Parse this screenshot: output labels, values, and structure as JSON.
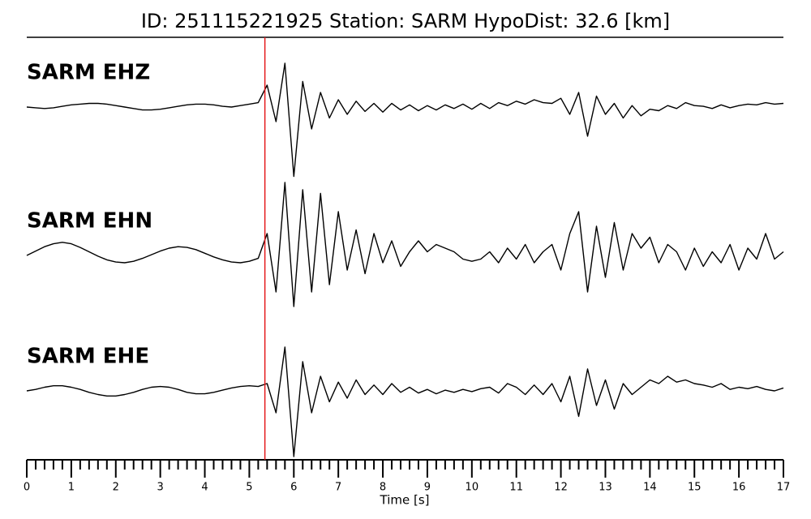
{
  "chart_data": {
    "type": "line",
    "title": "ID: 251115221925   Station: SARM   HypoDist:    32.6 [km]",
    "xlabel": "Time [s]",
    "xlim": [
      0,
      17
    ],
    "xticks": [
      0,
      1,
      2,
      3,
      4,
      5,
      6,
      7,
      8,
      9,
      10,
      11,
      12,
      13,
      14,
      15,
      16,
      17
    ],
    "xminorticks": [
      0.2,
      0.4,
      0.6,
      0.8,
      1.2,
      1.4,
      1.6,
      1.8,
      2.2,
      2.4,
      2.6,
      2.8,
      3.2,
      3.4,
      3.6,
      3.8,
      4.2,
      4.4,
      4.6,
      4.8,
      5.2,
      5.4,
      5.6,
      5.8,
      6.2,
      6.4,
      6.6,
      6.8,
      7.2,
      7.4,
      7.6,
      7.8,
      8.2,
      8.4,
      8.6,
      8.8,
      9.2,
      9.4,
      9.6,
      9.8,
      10.2,
      10.4,
      10.6,
      10.8,
      11.2,
      11.4,
      11.6,
      11.8,
      12.2,
      12.4,
      12.6,
      12.8,
      13.2,
      13.4,
      13.6,
      13.8,
      14.2,
      14.4,
      14.6,
      14.8,
      15.2,
      15.4,
      15.6,
      15.8,
      16.2,
      16.4,
      16.6,
      16.8
    ],
    "ylim": [
      -1,
      1
    ],
    "label_color": "#4c9a0a",
    "markers": [
      {
        "x": 5.35,
        "color": "#e41a1c"
      }
    ],
    "x": [
      0,
      0.2,
      0.4,
      0.6,
      0.8,
      1,
      1.2,
      1.4,
      1.6,
      1.8,
      2,
      2.2,
      2.4,
      2.6,
      2.8,
      3,
      3.2,
      3.4,
      3.6,
      3.8,
      4,
      4.2,
      4.4,
      4.6,
      4.8,
      5,
      5.2,
      5.4,
      5.6,
      5.8,
      6,
      6.2,
      6.4,
      6.6,
      6.8,
      7,
      7.2,
      7.4,
      7.6,
      7.8,
      8,
      8.2,
      8.4,
      8.6,
      8.8,
      9,
      9.2,
      9.4,
      9.6,
      9.8,
      10,
      10.2,
      10.4,
      10.6,
      10.8,
      11,
      11.2,
      11.4,
      11.6,
      11.8,
      12,
      12.2,
      12.4,
      12.6,
      12.8,
      13,
      13.2,
      13.4,
      13.6,
      13.8,
      14,
      14.2,
      14.4,
      14.6,
      14.8,
      15,
      15.2,
      15.4,
      15.6,
      15.8,
      16,
      16.2,
      16.4,
      16.6,
      16.8,
      17
    ],
    "series": [
      {
        "name": "SARM EHZ",
        "color": "#000000",
        "values": [
          0,
          -0.01,
          -0.02,
          -0.01,
          0.01,
          0.03,
          0.04,
          0.05,
          0.05,
          0.04,
          0.02,
          0,
          -0.02,
          -0.04,
          -0.04,
          -0.03,
          -0.01,
          0.01,
          0.03,
          0.04,
          0.04,
          0.03,
          0.01,
          0,
          0.02,
          0.04,
          0.06,
          0.3,
          -0.2,
          0.6,
          -0.95,
          0.35,
          -0.3,
          0.2,
          -0.15,
          0.1,
          -0.1,
          0.08,
          -0.06,
          0.05,
          -0.07,
          0.05,
          -0.04,
          0.03,
          -0.05,
          0.02,
          -0.04,
          0.03,
          -0.02,
          0.04,
          -0.03,
          0.05,
          -0.02,
          0.06,
          0.02,
          0.08,
          0.04,
          0.1,
          0.06,
          0.05,
          0.12,
          -0.1,
          0.2,
          -0.4,
          0.15,
          -0.1,
          0.05,
          -0.15,
          0.02,
          -0.12,
          -0.03,
          -0.05,
          0.02,
          -0.02,
          0.06,
          0.02,
          0.01,
          -0.02,
          0.03,
          -0.01,
          0.02,
          0.04,
          0.03,
          0.06,
          0.04,
          0.05
        ]
      },
      {
        "name": "SARM EHN",
        "color": "#000000",
        "values": [
          0,
          0.06,
          0.12,
          0.16,
          0.18,
          0.16,
          0.11,
          0.05,
          -0.01,
          -0.06,
          -0.09,
          -0.1,
          -0.08,
          -0.04,
          0.01,
          0.06,
          0.1,
          0.12,
          0.11,
          0.08,
          0.03,
          -0.02,
          -0.06,
          -0.09,
          -0.1,
          -0.08,
          -0.04,
          0.3,
          -0.5,
          1.0,
          -0.7,
          0.9,
          -0.5,
          0.85,
          -0.4,
          0.6,
          -0.2,
          0.35,
          -0.25,
          0.3,
          -0.1,
          0.2,
          -0.15,
          0.05,
          0.2,
          0.05,
          0.15,
          0.1,
          0.05,
          -0.05,
          -0.08,
          -0.05,
          0.05,
          -0.1,
          0.1,
          -0.05,
          0.15,
          -0.1,
          0.05,
          0.15,
          -0.2,
          0.3,
          0.6,
          -0.5,
          0.4,
          -0.3,
          0.45,
          -0.2,
          0.3,
          0.1,
          0.25,
          -0.1,
          0.15,
          0.05,
          -0.2,
          0.1,
          -0.15,
          0.05,
          -0.1,
          0.15,
          -0.2,
          0.1,
          -0.05,
          0.3,
          -0.05,
          0.05
        ]
      },
      {
        "name": "SARM EHE",
        "color": "#000000",
        "values": [
          0,
          0.02,
          0.05,
          0.07,
          0.07,
          0.05,
          0.02,
          -0.02,
          -0.05,
          -0.07,
          -0.07,
          -0.05,
          -0.02,
          0.02,
          0.05,
          0.06,
          0.05,
          0.02,
          -0.02,
          -0.04,
          -0.04,
          -0.02,
          0.01,
          0.04,
          0.06,
          0.07,
          0.06,
          0.1,
          -0.3,
          0.6,
          -0.9,
          0.4,
          -0.3,
          0.2,
          -0.15,
          0.12,
          -0.1,
          0.15,
          -0.05,
          0.08,
          -0.05,
          0.1,
          -0.02,
          0.05,
          -0.03,
          0.02,
          -0.04,
          0.01,
          -0.02,
          0.02,
          -0.01,
          0.03,
          0.05,
          -0.03,
          0.1,
          0.05,
          -0.05,
          0.08,
          -0.05,
          0.1,
          -0.15,
          0.2,
          -0.35,
          0.3,
          -0.2,
          0.15,
          -0.25,
          0.1,
          -0.05,
          0.05,
          0.15,
          0.1,
          0.2,
          0.12,
          0.15,
          0.1,
          0.08,
          0.05,
          0.1,
          0.02,
          0.05,
          0.03,
          0.06,
          0.02,
          0,
          0.04
        ]
      }
    ]
  }
}
